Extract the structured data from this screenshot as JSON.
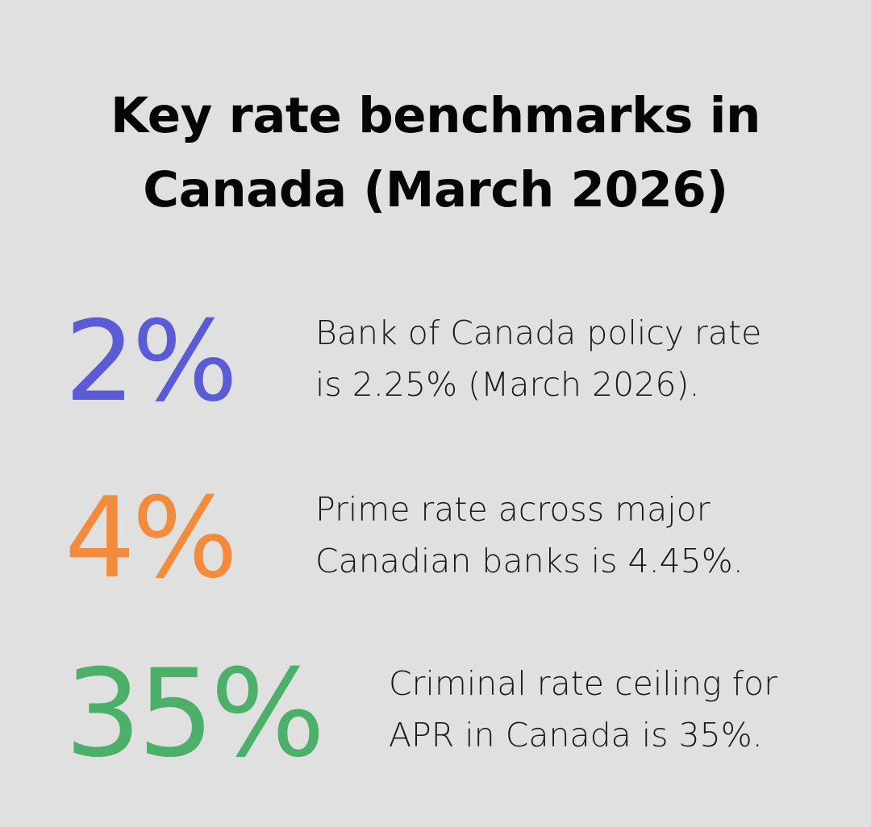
{
  "title": {
    "line1": "Key rate benchmarks in",
    "line2": "Canada (March 2026)"
  },
  "stats": [
    {
      "value": "2%",
      "color": "#5b5bd6",
      "line1": "Bank of Canada policy rate",
      "line2": "is 2.25% (March 2026)."
    },
    {
      "value": "4%",
      "color": "#f28b3c",
      "line1": "Prime rate across major",
      "line2": "Canadian banks is 4.45%."
    },
    {
      "value": "35%",
      "color": "#4caf6a",
      "line1": "Criminal rate ceiling for",
      "line2": "APR in Canada is 35%."
    }
  ]
}
